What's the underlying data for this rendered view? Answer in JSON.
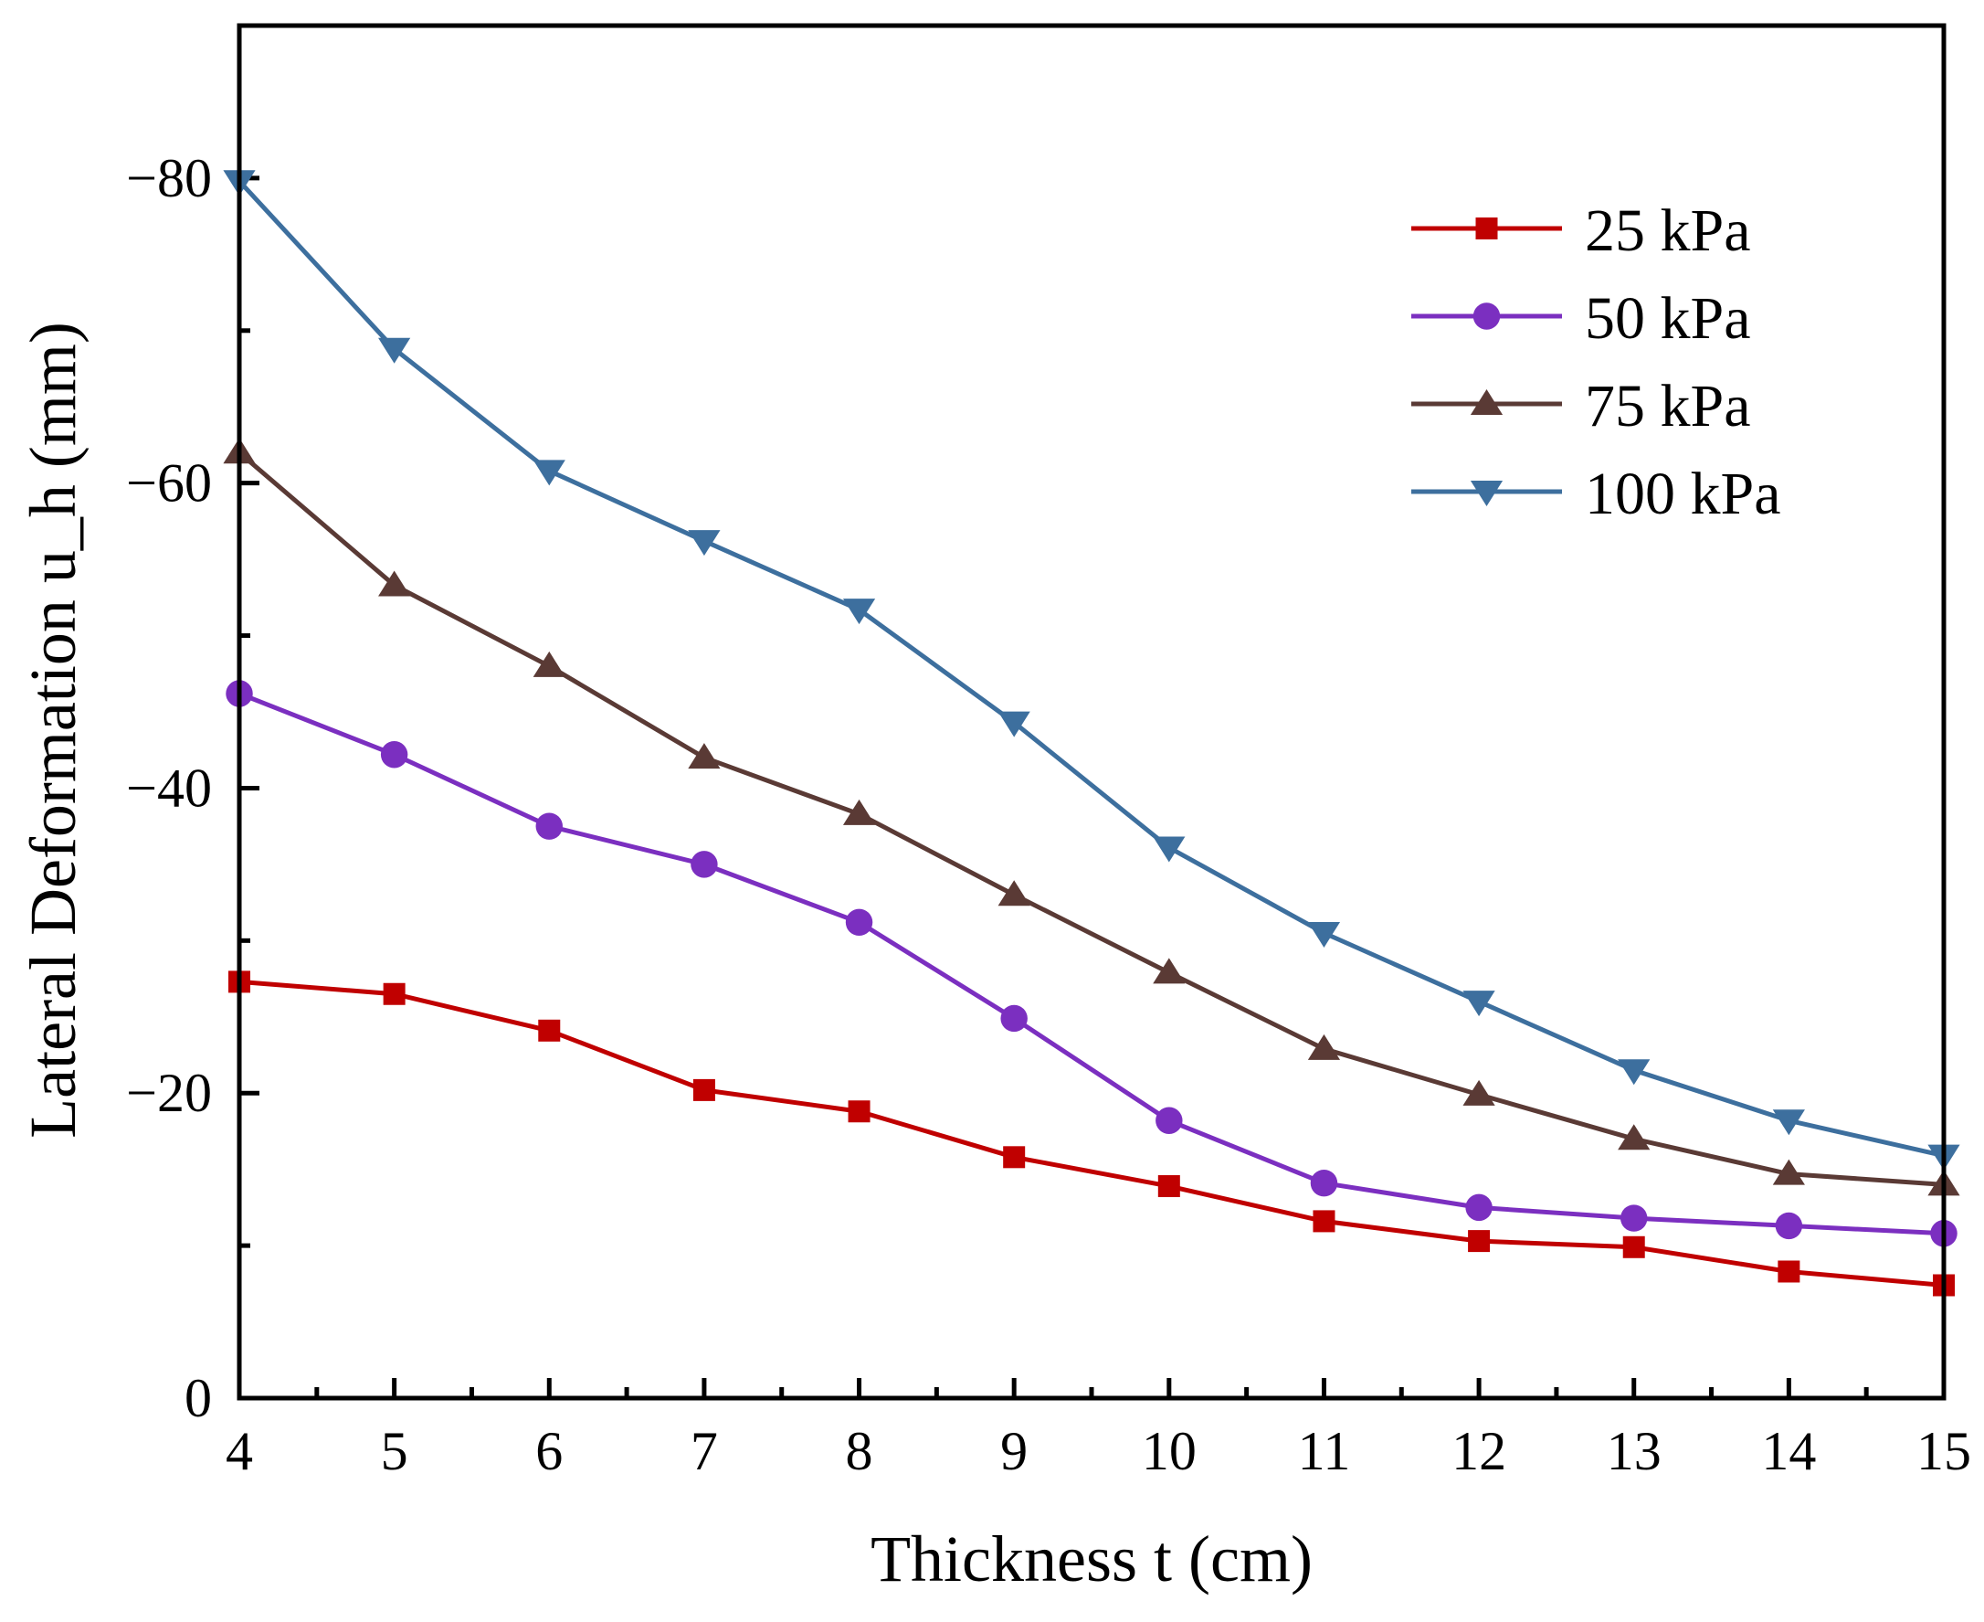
{
  "chart_data": {
    "type": "line",
    "title": "",
    "xlabel": "Thickness t (cm)",
    "ylabel": "Lateral Deformation u_h (mm)",
    "xlim": [
      4,
      15
    ],
    "ylim": [
      0,
      -90
    ],
    "x": [
      4,
      5,
      6,
      7,
      8,
      9,
      10,
      11,
      12,
      13,
      14,
      15
    ],
    "x_ticks": [
      4,
      5,
      6,
      7,
      8,
      9,
      10,
      11,
      12,
      13,
      14,
      15
    ],
    "x_tick_labels": [
      "4",
      "5",
      "6",
      "7",
      "8",
      "9",
      "10",
      "11",
      "12",
      "13",
      "14",
      "15"
    ],
    "y_ticks": [
      0,
      -20,
      -40,
      -60,
      -80
    ],
    "y_tick_labels": [
      "0",
      "−20",
      "−40",
      "−60",
      "−80"
    ],
    "grid": false,
    "legend_position": "top-right",
    "series": [
      {
        "name": "25 kPa",
        "color": "#c00000",
        "marker": "square",
        "values": [
          -27.3,
          -26.5,
          -24.1,
          -20.2,
          -18.8,
          -15.8,
          -13.9,
          -11.6,
          -10.3,
          -9.9,
          -8.3,
          -7.4
        ]
      },
      {
        "name": "50 kPa",
        "color": "#7b2fc0",
        "marker": "circle",
        "values": [
          -46.2,
          -42.2,
          -37.5,
          -35.0,
          -31.2,
          -24.9,
          -18.2,
          -14.1,
          -12.5,
          -11.8,
          -11.3,
          -10.8
        ]
      },
      {
        "name": "75 kPa",
        "color": "#5a3a35",
        "marker": "triangle-up",
        "values": [
          -62.0,
          -53.3,
          -48.0,
          -42.0,
          -38.3,
          -33.0,
          -27.9,
          -22.9,
          -19.9,
          -17.0,
          -14.7,
          -14.0
        ]
      },
      {
        "name": "100 kPa",
        "color": "#3d6f9e",
        "marker": "triangle-down",
        "values": [
          -79.8,
          -68.8,
          -60.8,
          -56.2,
          -51.7,
          -44.3,
          -36.1,
          -30.5,
          -26.0,
          -21.5,
          -18.2,
          -15.9
        ]
      }
    ]
  }
}
